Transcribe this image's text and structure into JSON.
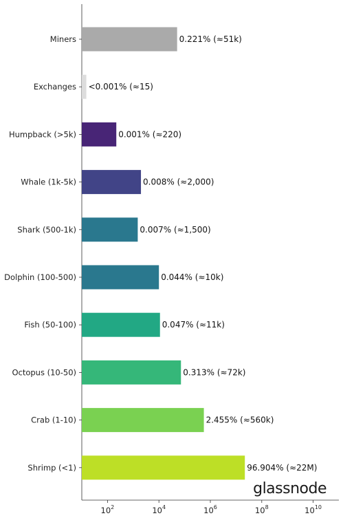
{
  "brand": "glassnode",
  "chart_data": {
    "type": "bar",
    "orientation": "horizontal",
    "x_scale": "log",
    "xlim": [
      10,
      100000000000
    ],
    "x_ticks": [
      100,
      10000,
      1000000,
      100000000,
      10000000000
    ],
    "x_tick_labels": [
      {
        "base": "10",
        "exp": "2"
      },
      {
        "base": "10",
        "exp": "4"
      },
      {
        "base": "10",
        "exp": "6"
      },
      {
        "base": "10",
        "exp": "8"
      },
      {
        "base": "10",
        "exp": "10"
      }
    ],
    "categories": [
      "Miners",
      "Exchanges",
      "Humpback (>5k)",
      "Whale (1k-5k)",
      "Shark (500-1k)",
      "Dolphin (100-500)",
      "Fish (50-100)",
      "Octopus (10-50)",
      "Crab (1-10)",
      "Shrimp (<1)"
    ],
    "values": [
      51000,
      15,
      220,
      2000,
      1500,
      10000,
      11000,
      72000,
      560000,
      22000000
    ],
    "data_labels": [
      "0.221% (≈51k)",
      "<0.001% (≈15)",
      "0.001% (≈220)",
      "0.008% (≈2,000)",
      "0.007% (≈1,500)",
      "0.044% (≈10k)",
      "0.047% (≈11k)",
      "0.313% (≈72k)",
      "2.455% (≈560k)",
      "96.904% (≈22M)"
    ],
    "colors": [
      "#aaaaaa",
      "#dddddd",
      "#482576",
      "#414487",
      "#2a788e",
      "#2a788e",
      "#22a884",
      "#35b779",
      "#7ad151",
      "#bddf26"
    ],
    "xlabel": "",
    "ylabel": "",
    "grid": false,
    "legend": false
  }
}
